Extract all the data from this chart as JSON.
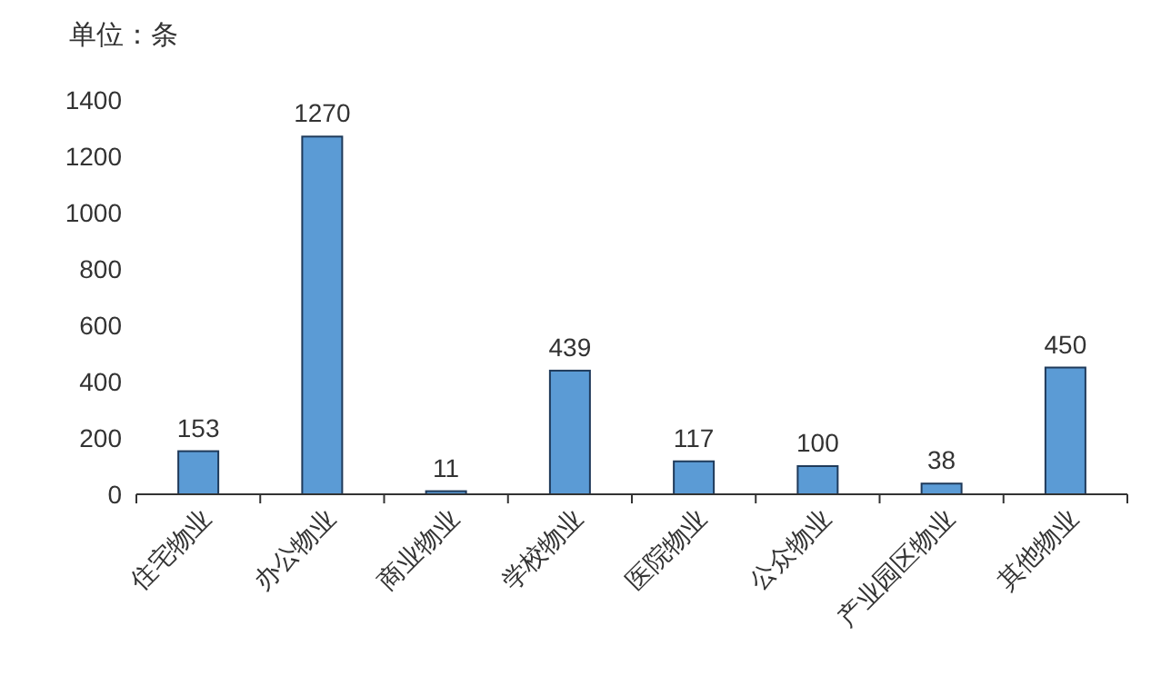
{
  "chart_data": {
    "type": "bar",
    "ylabel": "单位：条",
    "categories": [
      "住宅物业",
      "办公物业",
      "商业物业",
      "学校物业",
      "医院物业",
      "公众物业",
      "产业园区物业",
      "其他物业"
    ],
    "values": [
      153,
      1270,
      11,
      439,
      117,
      100,
      38,
      450
    ],
    "color": "#5b9bd5",
    "ylim": [
      0,
      1400
    ],
    "yticks": [
      0,
      200,
      400,
      600,
      800,
      1000,
      1200,
      1400
    ],
    "data_labels": true
  }
}
